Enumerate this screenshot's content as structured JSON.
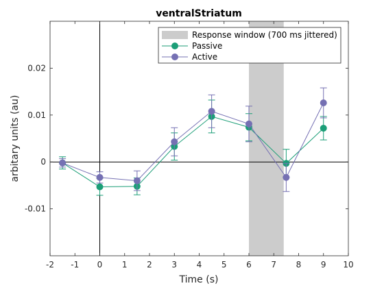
{
  "chart_data": {
    "type": "line",
    "title": "ventralStriatum",
    "xlabel": "Time (s)",
    "ylabel": "arbitary units (au)",
    "xlim": [
      -2,
      10
    ],
    "ylim": [
      -0.02,
      0.03
    ],
    "xticks": [
      -2,
      -1,
      0,
      1,
      2,
      3,
      4,
      5,
      6,
      7,
      8,
      9,
      10
    ],
    "xtick_labels": [
      "-2",
      "-1",
      "0",
      "1",
      "2",
      "3",
      "4",
      "5",
      "6",
      "7",
      "8",
      "9",
      "10"
    ],
    "yticks": [
      -0.01,
      0,
      0.01,
      0.02
    ],
    "ytick_labels": [
      "-0.01",
      "0",
      "0.01",
      "0.02"
    ],
    "grid": false,
    "legend_position": "top-right",
    "shaded_region": {
      "label": "Response window (700 ms jittered)",
      "x_start": 6.0,
      "x_end": 7.4,
      "color": "#cccccc"
    },
    "reference_lines": {
      "x": 0,
      "y": 0
    },
    "x": [
      -1.5,
      0,
      1.5,
      3,
      4.5,
      6,
      7.5,
      9
    ],
    "series": [
      {
        "name": "Passive",
        "color": "#1b9e77",
        "values": [
          -0.0002,
          -0.0053,
          -0.0052,
          0.0033,
          0.0097,
          0.0074,
          -0.0003,
          0.0072
        ],
        "error": [
          0.0013,
          0.0018,
          0.0018,
          0.0029,
          0.0035,
          0.0029,
          0.003,
          0.0025
        ]
      },
      {
        "name": "Active",
        "color": "#7570b3",
        "values": [
          -0.0002,
          -0.0033,
          -0.004,
          0.0043,
          0.0108,
          0.0081,
          -0.0033,
          0.0126
        ],
        "error": [
          0.0009,
          0.0012,
          0.0021,
          0.003,
          0.0035,
          0.0038,
          0.003,
          0.0032
        ]
      }
    ]
  }
}
